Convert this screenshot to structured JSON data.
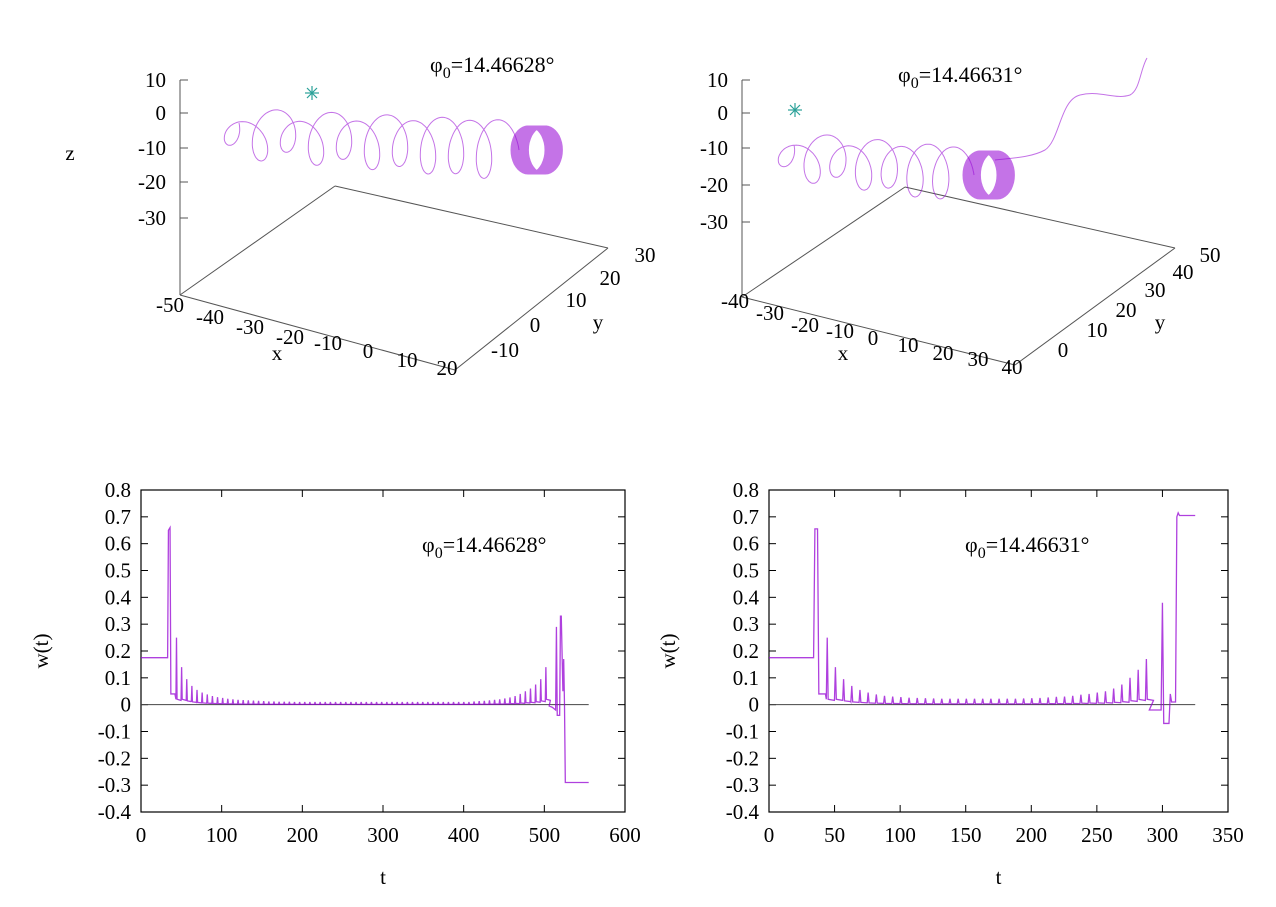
{
  "chart_data": [
    {
      "type": "line3d",
      "panel": "top-left",
      "title": {
        "prefix": "φ",
        "sub": "0",
        "value": "=14.46628°"
      },
      "xlabel": "x",
      "ylabel": "y",
      "zlabel": "z",
      "xticks": [
        "-50",
        "-40",
        "-30",
        "-20",
        "-10",
        "0",
        "10",
        "20"
      ],
      "yticks": [
        "-10",
        "0",
        "10",
        "20",
        "30"
      ],
      "zticks": [
        "10",
        "0",
        "-10",
        "-20",
        "-30"
      ],
      "xlim": [
        -50,
        20
      ],
      "ylim": [
        -15,
        30
      ],
      "zlim": [
        -40,
        10
      ],
      "start_marker": "asterisk",
      "series_color": "#9400d3",
      "marker_color": "#2aa198",
      "description_of_trajectory": "helix"
    },
    {
      "type": "line3d",
      "panel": "top-right",
      "title": {
        "prefix": "φ",
        "sub": "0",
        "value": "=14.46631°"
      },
      "xlabel": "x",
      "ylabel": "y",
      "zlabel": "",
      "xticks": [
        "-40",
        "-30",
        "-20",
        "-10",
        "0",
        "10",
        "20",
        "30",
        "40"
      ],
      "yticks": [
        "0",
        "10",
        "20",
        "30",
        "40",
        "50"
      ],
      "zticks": [
        "10",
        "0",
        "-10",
        "-20",
        "-30"
      ],
      "xlim": [
        -40,
        40
      ],
      "ylim": [
        -10,
        50
      ],
      "zlim": [
        -40,
        10
      ],
      "start_marker": "asterisk",
      "series_color": "#9400d3",
      "marker_color": "#2aa198",
      "description_of_trajectory": "helix"
    },
    {
      "type": "line",
      "panel": "bottom-left",
      "title": {
        "prefix": "φ",
        "sub": "0",
        "value": "=14.46628°"
      },
      "xlabel": "t",
      "ylabel": "w(t)",
      "xlim": [
        0,
        600
      ],
      "ylim": [
        -0.4,
        0.8
      ],
      "xticks": [
        "0",
        "100",
        "200",
        "300",
        "400",
        "500",
        "600"
      ],
      "yticks": [
        "0.8",
        "0.7",
        "0.6",
        "0.5",
        "0.4",
        "0.3",
        "0.2",
        "0.1",
        "0",
        "-0.1",
        "-0.2",
        "-0.3",
        "-0.4"
      ],
      "zero_line_end": 555,
      "head": [
        [
          0,
          0.175
        ],
        [
          33,
          0.175
        ],
        [
          34,
          0.65
        ],
        [
          36,
          0.66
        ],
        [
          37,
          0.04
        ],
        [
          42,
          0.04
        ]
      ],
      "spike_start": 44,
      "spike_period": 6.36,
      "spike_peaks": [
        0.25,
        0.14,
        0.095,
        0.07,
        0.055,
        0.045,
        0.038,
        0.032,
        0.028,
        0.025,
        0.022,
        0.02,
        0.018,
        0.017,
        0.016,
        0.015,
        0.014,
        0.013,
        0.012,
        0.012,
        0.011,
        0.011,
        0.011,
        0.01,
        0.01,
        0.01,
        0.01,
        0.01,
        0.01,
        0.01,
        0.01,
        0.01,
        0.01,
        0.01,
        0.01,
        0.01,
        0.01,
        0.01,
        0.01,
        0.01,
        0.01,
        0.01,
        0.01,
        0.01,
        0.01,
        0.01,
        0.01,
        0.01,
        0.01,
        0.01,
        0.01,
        0.01,
        0.01,
        0.01,
        0.01,
        0.01,
        0.01,
        0.01,
        0.012,
        0.013,
        0.014,
        0.016,
        0.018,
        0.02,
        0.023,
        0.027,
        0.032,
        0.04,
        0.05,
        0.06,
        0.075,
        0.095,
        0.14
      ],
      "tail": [
        [
          506,
          -0.005
        ],
        [
          510,
          -0.01
        ],
        [
          514,
          -0.02
        ],
        [
          515,
          0.29
        ],
        [
          516,
          -0.04
        ],
        [
          519,
          -0.04
        ],
        [
          520,
          0.33
        ],
        [
          521,
          0.33
        ],
        [
          523,
          0.05
        ],
        [
          524,
          0.17
        ],
        [
          525,
          0.0
        ],
        [
          526,
          -0.29
        ],
        [
          555,
          -0.29
        ]
      ],
      "series_color": "#9400d3"
    },
    {
      "type": "line",
      "panel": "bottom-right",
      "title": {
        "prefix": "φ",
        "sub": "0",
        "value": "=14.46631°"
      },
      "xlabel": "t",
      "ylabel": "w(t)",
      "xlim": [
        0,
        350
      ],
      "ylim": [
        -0.4,
        0.8
      ],
      "xticks": [
        "0",
        "50",
        "100",
        "150",
        "200",
        "250",
        "300",
        "350"
      ],
      "yticks": [
        "0.8",
        "0.7",
        "0.6",
        "0.5",
        "0.4",
        "0.3",
        "0.2",
        "0.1",
        "0",
        "-0.1",
        "-0.2",
        "-0.3",
        "-0.4"
      ],
      "zero_line_end": 325,
      "head": [
        [
          0,
          0.175
        ],
        [
          34,
          0.175
        ],
        [
          35,
          0.655
        ],
        [
          37,
          0.655
        ],
        [
          38,
          0.04
        ],
        [
          43,
          0.04
        ]
      ],
      "spike_start": 44.4,
      "spike_period": 6.24,
      "spike_peaks": [
        0.25,
        0.14,
        0.095,
        0.07,
        0.055,
        0.045,
        0.038,
        0.033,
        0.03,
        0.028,
        0.026,
        0.025,
        0.024,
        0.023,
        0.022,
        0.022,
        0.022,
        0.022,
        0.022,
        0.022,
        0.022,
        0.022,
        0.022,
        0.022,
        0.023,
        0.024,
        0.025,
        0.027,
        0.029,
        0.03,
        0.033,
        0.037,
        0.04,
        0.045,
        0.05,
        0.06,
        0.075,
        0.1,
        0.13,
        0.17
      ],
      "tail": [
        [
          290,
          -0.02
        ],
        [
          299,
          -0.02
        ],
        [
          300,
          0.38
        ],
        [
          301,
          -0.07
        ],
        [
          305,
          -0.07
        ],
        [
          306,
          0.04
        ],
        [
          307,
          0.01
        ],
        [
          310,
          0.01
        ],
        [
          311,
          0.7
        ],
        [
          312,
          0.715
        ],
        [
          313,
          0.705
        ],
        [
          325,
          0.705
        ]
      ],
      "series_color": "#9400d3"
    }
  ]
}
